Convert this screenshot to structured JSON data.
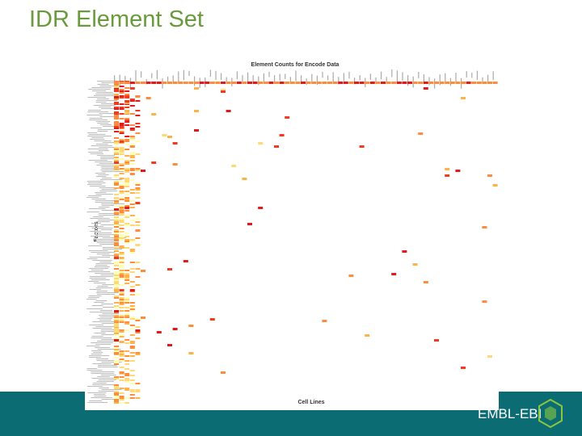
{
  "header": {
    "title": "IDR Element Set"
  },
  "figure": {
    "title": "Element Counts for Encode Data",
    "y_label": "Factors",
    "x_label": "Cell Lines"
  },
  "footer": {
    "brand": "EMBL-EBI"
  }
}
